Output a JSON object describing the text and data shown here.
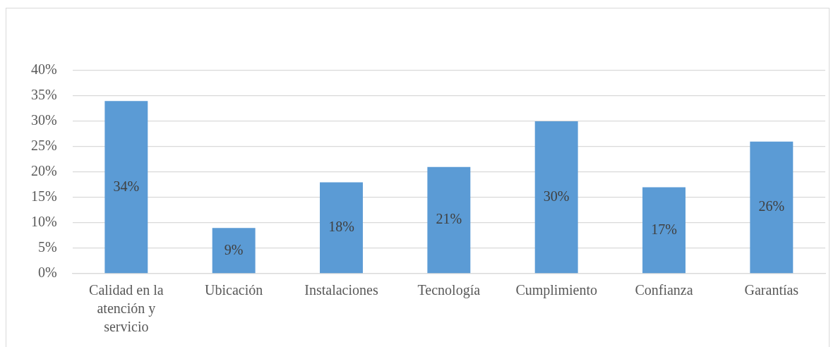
{
  "chart_data": {
    "type": "bar",
    "categories": [
      "Calidad en la atención y servicio",
      "Ubicación",
      "Instalaciones",
      "Tecnología",
      "Cumplimiento",
      "Confianza",
      "Garantías"
    ],
    "values": [
      34,
      9,
      18,
      21,
      30,
      17,
      26
    ],
    "value_labels": [
      "34%",
      "9%",
      "18%",
      "21%",
      "30%",
      "17%",
      "26%"
    ],
    "color": "#5b9bd5",
    "ylim": [
      0,
      40
    ],
    "yticks": [
      {
        "value": 0,
        "label": "0%"
      },
      {
        "value": 5,
        "label": "5%"
      },
      {
        "value": 10,
        "label": "10%"
      },
      {
        "value": 15,
        "label": "15%"
      },
      {
        "value": 20,
        "label": "20%"
      },
      {
        "value": 25,
        "label": "25%"
      },
      {
        "value": 30,
        "label": "30%"
      },
      {
        "value": 35,
        "label": "35%"
      },
      {
        "value": 40,
        "label": "40%"
      }
    ],
    "grid": "y"
  }
}
